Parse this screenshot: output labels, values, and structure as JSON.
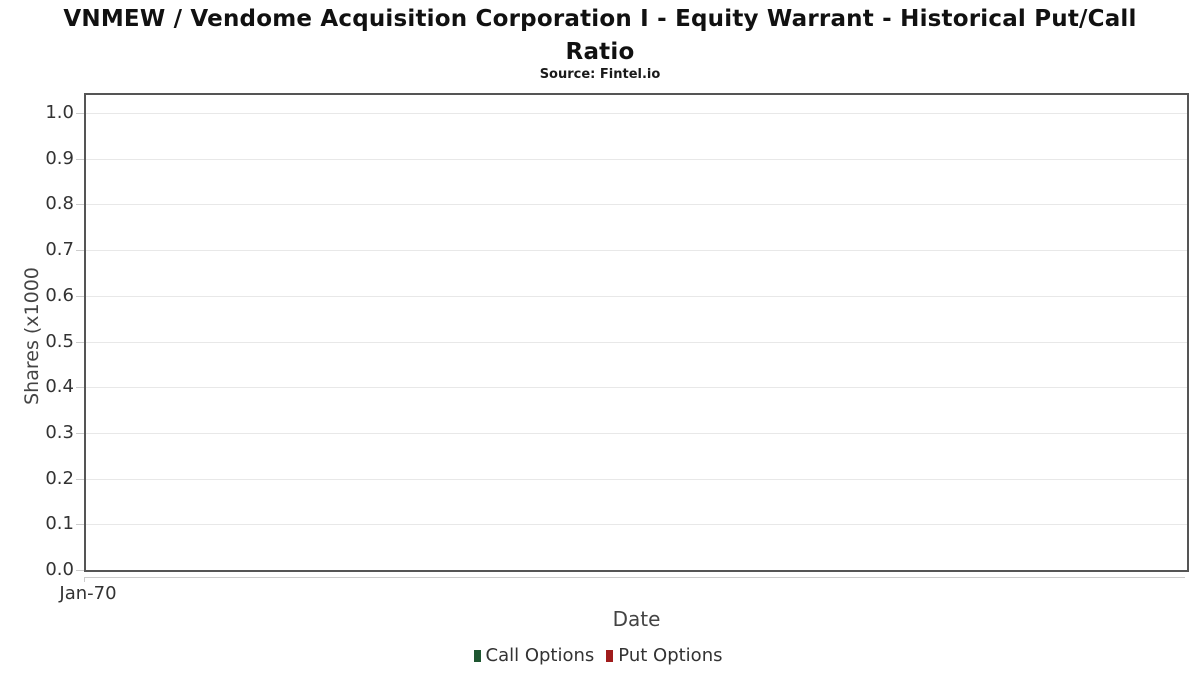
{
  "header": {
    "title_line1": "VNMEW / Vendome Acquisition Corporation I - Equity Warrant - Historical Put/Call",
    "title_line2": "Ratio",
    "subtitle": "Source: Fintel.io"
  },
  "chart_data": {
    "type": "line",
    "title": "VNMEW / Vendome Acquisition Corporation I - Equity Warrant - Historical Put/Call Ratio",
    "subtitle": "Source: Fintel.io",
    "xlabel": "Date",
    "ylabel": "Shares (x1000",
    "x": [],
    "series": [
      {
        "name": "Call Options",
        "color": "#1e5631",
        "values": []
      },
      {
        "name": "Put Options",
        "color": "#a01c1c",
        "values": []
      }
    ],
    "yticks": [
      "0.0",
      "0.1",
      "0.2",
      "0.3",
      "0.4",
      "0.5",
      "0.6",
      "0.7",
      "0.8",
      "0.9",
      "1.0"
    ],
    "xticks": [
      "Jan-70"
    ],
    "ylim": [
      0.0,
      1.04
    ],
    "grid": true,
    "legend_position": "bottom"
  },
  "colors": {
    "plot_border": "#555555",
    "gridline": "#e8e8e8",
    "tick": "#cccccc",
    "title_text": "#111111",
    "tick_text": "#333333",
    "axis_title_text": "#444444"
  }
}
